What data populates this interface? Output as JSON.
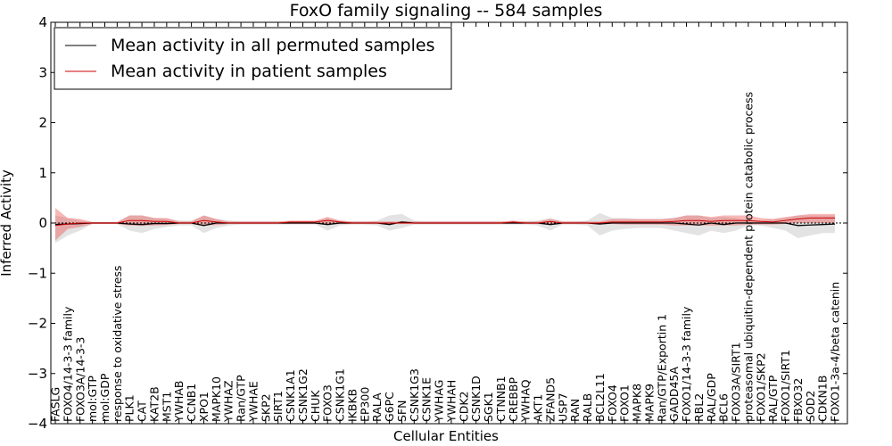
{
  "chart_data": {
    "type": "line",
    "title": "FoxO family signaling -- 584 samples",
    "xlabel": "Cellular Entities",
    "ylabel": "Inferred Activity",
    "ylim": [
      -4,
      4
    ],
    "yticks": [
      -4,
      -3,
      -2,
      -1,
      0,
      1,
      2,
      3,
      4
    ],
    "ytick_labels": [
      "−4",
      "−3",
      "−2",
      "−1",
      "0",
      "1",
      "2",
      "3",
      "4"
    ],
    "legend_position": "top-left",
    "categories": [
      "FASLG",
      "FOXO4/14-3-3 family",
      "FOXO3A/14-3-3",
      "mol:GTP",
      "mol:GDP",
      "response to oxidative stress",
      "PLK1",
      "CAT",
      "KAT2B",
      "MST1",
      "YWHAB",
      "CCNB1",
      "XPO1",
      "MAPK10",
      "YWHAZ",
      "Ran/GTP",
      "YWHAE",
      "SKP2",
      "SIRT1",
      "CSNK1A1",
      "CSNK1G2",
      "CHUK",
      "FOXO3",
      "CSNK1G1",
      "IKBKB",
      "EP300",
      "RALA",
      "G6PC",
      "SFN",
      "CSNK1G3",
      "CSNK1E",
      "YWHAG",
      "YWHAH",
      "CDK2",
      "CSNK1D",
      "SGK1",
      "CTNNB1",
      "CREBBP",
      "YWHAQ",
      "AKT1",
      "ZFAND5",
      "USP7",
      "RAN",
      "RALB",
      "BCL2L11",
      "FOXO4",
      "FOXO1",
      "MAPK8",
      "MAPK9",
      "Ran/GTP/Exportin 1",
      "GADD45A",
      "FOXO1/14-3-3 family",
      "RBL2",
      "RAL/GDP",
      "BCL6",
      "FOXO3A/SIRT1",
      "proteasomal ubiquitin-dependent protein catabolic process",
      "FOXO1/SKP2",
      "RAL/GTP",
      "FOXO1/SIRT1",
      "FBXO32",
      "SOD2",
      "CDKN1B",
      "FOXO1-3a-4/beta catenin"
    ],
    "series": [
      {
        "name": "Mean activity in all permuted samples",
        "color": "#000000",
        "values": [
          -0.03,
          -0.02,
          -0.01,
          0.0,
          0.0,
          0.0,
          -0.02,
          -0.03,
          -0.01,
          -0.01,
          0.0,
          0.0,
          -0.05,
          0.0,
          0.0,
          0.0,
          0.0,
          0.0,
          0.0,
          0.0,
          0.0,
          0.0,
          -0.03,
          0.0,
          0.0,
          0.0,
          0.0,
          -0.03,
          0.02,
          0.0,
          0.0,
          0.0,
          0.0,
          0.0,
          0.0,
          0.0,
          0.0,
          0.0,
          0.0,
          0.0,
          -0.03,
          0.0,
          0.0,
          0.0,
          -0.02,
          0.0,
          0.0,
          0.0,
          0.0,
          0.0,
          0.0,
          -0.02,
          -0.04,
          0.0,
          -0.03,
          0.0,
          0.0,
          0.0,
          0.0,
          0.0,
          -0.05,
          -0.04,
          -0.03,
          -0.02
        ],
        "band_low": [
          -0.4,
          -0.25,
          -0.15,
          -0.02,
          -0.02,
          -0.02,
          -0.15,
          -0.2,
          -0.12,
          -0.08,
          -0.05,
          -0.05,
          -0.2,
          -0.1,
          -0.05,
          -0.03,
          -0.03,
          -0.03,
          -0.03,
          -0.03,
          -0.03,
          -0.03,
          -0.15,
          -0.05,
          -0.03,
          -0.03,
          -0.05,
          -0.15,
          -0.1,
          -0.03,
          -0.03,
          -0.03,
          -0.03,
          -0.03,
          -0.03,
          -0.03,
          -0.03,
          -0.03,
          -0.03,
          -0.05,
          -0.15,
          -0.03,
          -0.03,
          -0.05,
          -0.25,
          -0.15,
          -0.12,
          -0.1,
          -0.1,
          -0.1,
          -0.15,
          -0.2,
          -0.25,
          -0.15,
          -0.2,
          -0.15,
          -0.05,
          -0.05,
          -0.1,
          -0.15,
          -0.3,
          -0.25,
          -0.2,
          -0.2
        ],
        "band_high": [
          0.15,
          0.1,
          0.05,
          0.02,
          0.02,
          0.02,
          0.15,
          0.15,
          0.1,
          0.08,
          0.05,
          0.05,
          0.15,
          0.08,
          0.05,
          0.03,
          0.03,
          0.03,
          0.03,
          0.03,
          0.03,
          0.03,
          0.1,
          0.05,
          0.03,
          0.03,
          0.05,
          0.15,
          0.18,
          0.05,
          0.03,
          0.03,
          0.03,
          0.03,
          0.03,
          0.03,
          0.03,
          0.03,
          0.03,
          0.05,
          0.1,
          0.03,
          0.03,
          0.05,
          0.2,
          0.1,
          0.1,
          0.08,
          0.08,
          0.08,
          0.1,
          0.15,
          0.15,
          0.1,
          0.12,
          0.1,
          0.05,
          0.05,
          0.08,
          0.1,
          0.15,
          0.15,
          0.15,
          0.15
        ]
      },
      {
        "name": "Mean activity in patient samples",
        "color": "#cc0000",
        "values": [
          -0.05,
          -0.02,
          0.0,
          0.0,
          0.0,
          0.0,
          0.05,
          0.05,
          0.03,
          0.03,
          0.0,
          0.0,
          0.05,
          0.02,
          0.0,
          0.0,
          0.0,
          0.0,
          0.0,
          0.02,
          0.02,
          0.02,
          0.05,
          0.02,
          0.0,
          0.0,
          0.0,
          0.0,
          0.0,
          0.0,
          0.0,
          0.0,
          0.0,
          0.0,
          0.0,
          0.0,
          0.0,
          0.02,
          0.0,
          0.0,
          0.03,
          0.0,
          0.0,
          0.0,
          0.0,
          0.02,
          0.02,
          0.02,
          0.02,
          0.02,
          0.03,
          0.05,
          0.05,
          0.03,
          0.05,
          0.05,
          0.05,
          0.03,
          0.02,
          0.05,
          0.08,
          0.1,
          0.1,
          0.1
        ],
        "band_low": [
          -0.35,
          -0.12,
          -0.08,
          -0.02,
          -0.02,
          -0.02,
          -0.05,
          -0.06,
          -0.05,
          -0.04,
          -0.02,
          -0.02,
          -0.05,
          -0.04,
          -0.02,
          -0.02,
          -0.02,
          -0.02,
          -0.02,
          -0.02,
          -0.02,
          -0.02,
          -0.03,
          -0.02,
          -0.02,
          -0.02,
          -0.02,
          -0.02,
          -0.02,
          -0.02,
          -0.02,
          -0.02,
          -0.02,
          -0.02,
          -0.02,
          -0.02,
          -0.02,
          -0.02,
          -0.02,
          -0.02,
          -0.03,
          -0.02,
          -0.02,
          -0.02,
          -0.02,
          -0.02,
          -0.03,
          -0.03,
          -0.03,
          -0.03,
          -0.05,
          -0.05,
          -0.05,
          -0.05,
          -0.05,
          -0.05,
          -0.03,
          -0.03,
          -0.03,
          -0.02,
          0.0,
          0.0,
          0.0,
          0.0
        ],
        "band_high": [
          0.3,
          0.1,
          0.08,
          0.02,
          0.02,
          0.02,
          0.15,
          0.15,
          0.1,
          0.1,
          0.03,
          0.03,
          0.15,
          0.08,
          0.03,
          0.03,
          0.03,
          0.03,
          0.03,
          0.05,
          0.05,
          0.05,
          0.12,
          0.05,
          0.03,
          0.03,
          0.03,
          0.03,
          0.03,
          0.03,
          0.03,
          0.03,
          0.03,
          0.03,
          0.03,
          0.03,
          0.03,
          0.05,
          0.03,
          0.03,
          0.08,
          0.03,
          0.03,
          0.03,
          0.03,
          0.08,
          0.08,
          0.08,
          0.08,
          0.08,
          0.1,
          0.15,
          0.15,
          0.12,
          0.15,
          0.15,
          0.15,
          0.1,
          0.08,
          0.12,
          0.15,
          0.18,
          0.18,
          0.18
        ]
      }
    ]
  }
}
